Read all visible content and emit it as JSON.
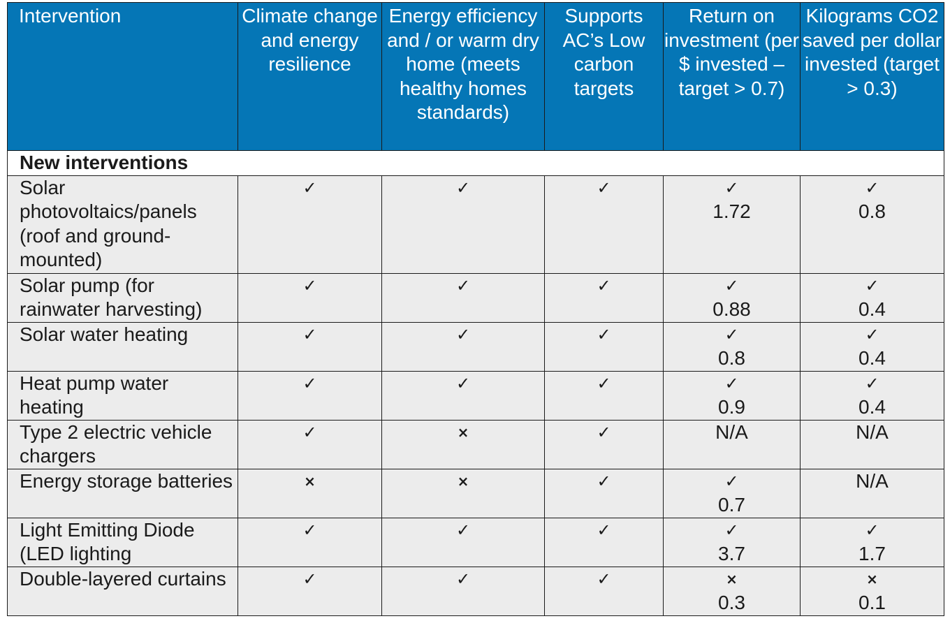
{
  "table": {
    "headers": [
      "Intervention",
      "Climate change and energy resilience",
      "Energy efficiency and / or warm dry home (meets healthy homes standards)",
      "Supports AC’s Low carbon targets",
      "Return on investment (per $ invested – target > 0.7)",
      "Kilograms CO2 saved per dollar invested (target > 0.3)"
    ],
    "section_label": "New interventions",
    "check_symbol": "✓",
    "cross_symbol": "×",
    "header_color": "#0576b6",
    "row_color": "#ececec",
    "rows": [
      {
        "label": "Solar photovoltaics/panels (roof and ground-mounted)",
        "climate": "yes",
        "efficiency": "yes",
        "low_carbon": "yes",
        "roi_mark": "yes",
        "roi_value": "1.72",
        "co2_mark": "yes",
        "co2_value": "0.8"
      },
      {
        "label": "Solar pump (for rainwater harvesting)",
        "climate": "yes",
        "efficiency": "yes",
        "low_carbon": "yes",
        "roi_mark": "yes",
        "roi_value": "0.88",
        "co2_mark": "yes",
        "co2_value": "0.4"
      },
      {
        "label": "Solar water heating",
        "climate": "yes",
        "efficiency": "yes",
        "low_carbon": "yes",
        "roi_mark": "yes",
        "roi_value": "0.8",
        "co2_mark": "yes",
        "co2_value": "0.4"
      },
      {
        "label": "Heat pump water heating",
        "climate": "yes",
        "efficiency": "yes",
        "low_carbon": "yes",
        "roi_mark": "yes",
        "roi_value": "0.9",
        "co2_mark": "yes",
        "co2_value": "0.4"
      },
      {
        "label": "Type 2 electric vehicle chargers",
        "climate": "yes",
        "efficiency": "no",
        "low_carbon": "yes",
        "roi_mark": "none",
        "roi_value": "N/A",
        "co2_mark": "none",
        "co2_value": "N/A"
      },
      {
        "label": "Energy storage batteries",
        "climate": "no",
        "efficiency": "no",
        "low_carbon": "yes",
        "roi_mark": "yes",
        "roi_value": "0.7",
        "co2_mark": "none",
        "co2_value": "N/A"
      },
      {
        "label": "Light Emitting Diode (LED lighting",
        "climate": "yes",
        "efficiency": "yes",
        "low_carbon": "yes",
        "roi_mark": "yes",
        "roi_value": "3.7",
        "co2_mark": "yes",
        "co2_value": "1.7"
      },
      {
        "label": "Double-layered curtains",
        "climate": "yes",
        "efficiency": "yes",
        "low_carbon": "yes",
        "roi_mark": "no",
        "roi_value": "0.3",
        "co2_mark": "no",
        "co2_value": "0.1"
      }
    ]
  }
}
